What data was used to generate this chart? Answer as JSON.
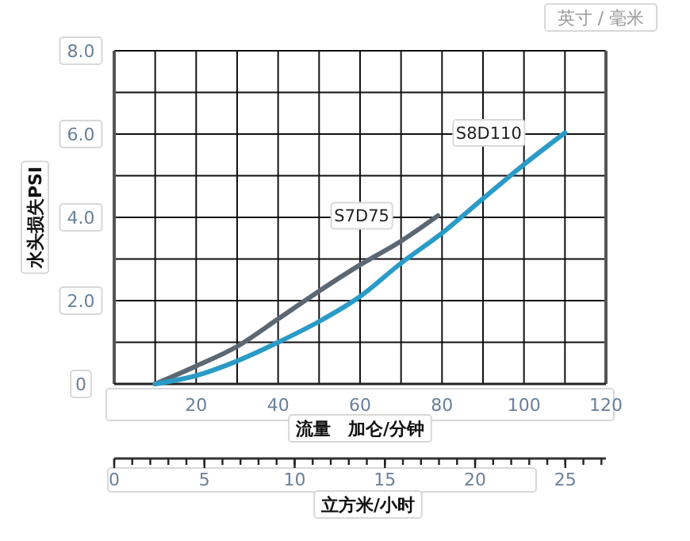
{
  "chart_data": {
    "type": "line",
    "xlabel": "流量　加仑/分钟",
    "ylabel": "水头损失PSI",
    "x2label": "立方米/小时",
    "annotations": [
      "英寸 / 毫米"
    ],
    "xlim": [
      0,
      120
    ],
    "xticks": [
      {
        "value": 0,
        "label": null
      },
      {
        "value": 10,
        "label": null
      },
      20,
      {
        "value": 30,
        "label": null
      },
      40,
      {
        "value": 50,
        "label": null
      },
      60,
      {
        "value": 70,
        "label": null
      },
      80,
      {
        "value": 90,
        "label": null
      },
      100,
      {
        "value": 110,
        "label": null
      },
      120
    ],
    "ylim": [
      0,
      8
    ],
    "yticks": [
      0,
      {
        "value": 1,
        "label": null
      },
      {
        "value": 2,
        "label": "2.0"
      },
      {
        "value": 3,
        "label": null
      },
      {
        "value": 4,
        "label": "4.0"
      },
      {
        "value": 5,
        "label": null
      },
      {
        "value": 6,
        "label": "6.0"
      },
      {
        "value": 7,
        "label": null
      },
      {
        "value": 8,
        "label": "8.0"
      }
    ],
    "x2lim": [
      0,
      27.25
    ],
    "x2ticks": [
      0,
      5,
      10,
      15,
      20,
      25
    ],
    "grid": true,
    "marker": "none",
    "line_style": "solid",
    "series": [
      {
        "name": "S7D75",
        "color": "#5b6873",
        "x": [
          10,
          20,
          30,
          40,
          50,
          60,
          70,
          79
        ],
        "values": [
          0,
          0.43,
          0.9,
          1.56,
          2.23,
          2.86,
          3.43,
          4.04
        ]
      },
      {
        "name": "S8D110",
        "color": "#2a9bc6",
        "x": [
          10,
          20,
          30,
          40,
          50,
          60,
          70,
          80,
          90,
          100,
          110
        ],
        "values": [
          0,
          0.2,
          0.55,
          1.0,
          1.5,
          2.1,
          2.9,
          3.62,
          4.45,
          5.27,
          6.03
        ]
      }
    ]
  }
}
